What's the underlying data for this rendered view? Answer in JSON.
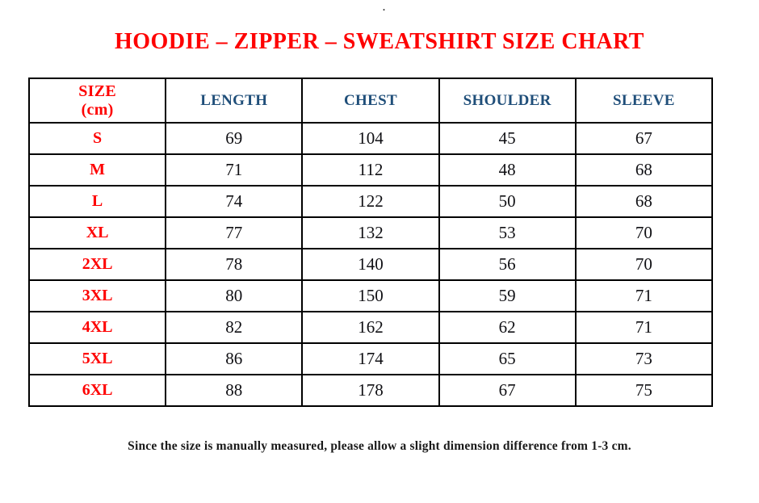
{
  "page": {
    "top_dot": ".",
    "title": "HOODIE – ZIPPER – SWEATSHIRT SIZE CHART",
    "footer_note": "Since the size is manually measured, please allow a slight dimension difference from 1-3 cm."
  },
  "colors": {
    "title_red": "#fe0000",
    "header_blue": "#1f4e79",
    "text_black": "#101014",
    "border_black": "#000000"
  },
  "table": {
    "headers": [
      "SIZE\n(cm)",
      "LENGTH",
      "CHEST",
      "SHOULDER",
      "SLEEVE"
    ],
    "rows": [
      {
        "size": "S",
        "values": [
          69,
          104,
          45,
          67
        ]
      },
      {
        "size": "M",
        "values": [
          71,
          112,
          48,
          68
        ]
      },
      {
        "size": "L",
        "values": [
          74,
          122,
          50,
          68
        ]
      },
      {
        "size": "XL",
        "values": [
          77,
          132,
          53,
          70
        ]
      },
      {
        "size": "2XL",
        "values": [
          78,
          140,
          56,
          70
        ]
      },
      {
        "size": "3XL",
        "values": [
          80,
          150,
          59,
          71
        ]
      },
      {
        "size": "4XL",
        "values": [
          82,
          162,
          62,
          71
        ]
      },
      {
        "size": "5XL",
        "values": [
          86,
          174,
          65,
          73
        ]
      },
      {
        "size": "6XL",
        "values": [
          88,
          178,
          67,
          75
        ]
      }
    ]
  }
}
